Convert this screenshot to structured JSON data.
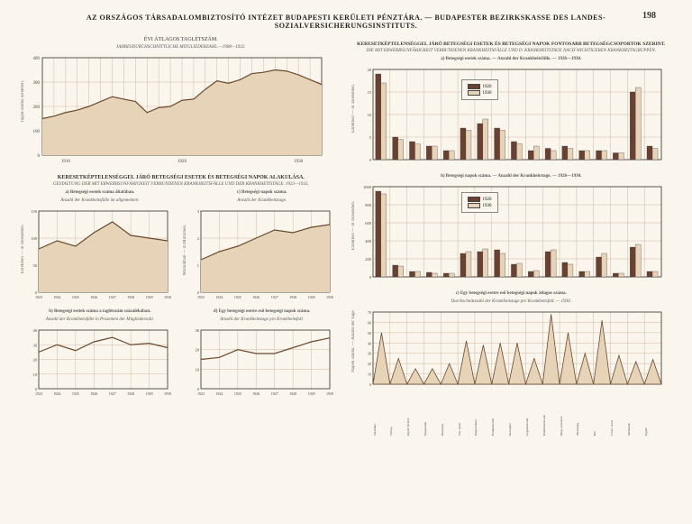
{
  "page_number": "198",
  "main_title": "AZ ORSZÁGOS TÁRSADALOMBIZTOSÍTÓ INTÉZET BUDAPESTI KERÜLETI PÉNZTÁRA. — BUDAPESTER BEZIRKSKASSE DES LANDES-SOZIALVERSICHERUNGSINSTITUTS.",
  "chart_a": {
    "title": "ÉVI ÁTLAGOS TAGLÉTSZÁM.",
    "subtitle": "JAHRESDURCHSCHNITTLICHE MITGLIEDERZAHL.—1908—1932.",
    "type": "area",
    "xlim": [
      1908,
      1932
    ],
    "ylim": [
      0,
      400
    ],
    "ytick_step": 100,
    "x_ticks": [
      1910,
      1920,
      1930
    ],
    "values": [
      150,
      160,
      175,
      185,
      200,
      220,
      240,
      230,
      220,
      175,
      195,
      200,
      225,
      230,
      270,
      305,
      295,
      310,
      335,
      340,
      350,
      345,
      330,
      310,
      290
    ],
    "fill_color": "#e6d3b8",
    "line_color": "#6a4a2d",
    "grid_color": "#c7a88a",
    "bg": "#faf6ed",
    "ylabel": "Tagok száma ezrekben."
  },
  "section_b_title": "KERESETKÉPTELENSÉGGEL JÁRÓ BETEGSÉGI ESETEK ÉS BETEGSÉGI NAPOK ALAKULÁSA.",
  "section_b_subtitle": "GESTALTUNG DER MIT ERWERBSUNFÄHIGKEIT VERBUNDENEN KRANKHEITSFÄLLE UND DER KRANKHEITSTAGE. 1923—1932.",
  "chart_b1": {
    "title": "a) Betegségi esetek száma általában.",
    "subtitle": "Anzahl der Krankheitsfälle im allgemeinen.",
    "ylim": [
      0,
      150
    ],
    "ytick_step": 50,
    "x_ticks": [
      1923,
      1924,
      1925,
      1926,
      1927,
      1928,
      1929,
      1930
    ],
    "values": [
      80,
      95,
      85,
      110,
      130,
      105,
      100,
      95
    ],
    "line_color": "#6a4a2d",
    "fill_color": "#e6d3b8",
    "grid_color": "#c7a88a",
    "ylabel": "Ezrekben — in Tausenden."
  },
  "chart_b2": {
    "title": "c) Betegségi napok száma.",
    "subtitle": "Anzahl der Krankheitstage.",
    "ylim": [
      0,
      3
    ],
    "ytick_step": 1,
    "x_ticks": [
      1923,
      1924,
      1925,
      1926,
      1927,
      1928,
      1929,
      1930
    ],
    "values": [
      1.2,
      1.5,
      1.7,
      2.0,
      2.3,
      2.2,
      2.4,
      2.5
    ],
    "line_color": "#6a4a2d",
    "fill_color": "#e6d3b8",
    "grid_color": "#c7a88a",
    "ylabel": "Milliókban — in Millionen."
  },
  "chart_b3": {
    "title": "b) Betegségi esetek száma a taglétszám százalékában.",
    "subtitle": "Anzahl der Krankheitsfälle in Prozenten der Mitgliederzahl.",
    "ylim": [
      0,
      40
    ],
    "ytick_step": 10,
    "x_ticks": [
      1923,
      1924,
      1925,
      1926,
      1927,
      1928,
      1929,
      1930
    ],
    "values": [
      25,
      30,
      26,
      32,
      35,
      30,
      31,
      28
    ],
    "line_color": "#6a4a2d",
    "grid_color": "#c7a88a",
    "ylabel": "%"
  },
  "chart_b4": {
    "title": "d) Egy betegségi esetre eső betegségi napok száma.",
    "subtitle": "Anzahl der Krankheitstage pro Krankheitsfall.",
    "ylim": [
      0,
      30
    ],
    "ytick_step": 10,
    "x_ticks": [
      1923,
      1924,
      1925,
      1926,
      1927,
      1928,
      1929,
      1930
    ],
    "values": [
      15,
      16,
      20,
      18,
      18,
      21,
      24,
      26
    ],
    "line_color": "#6a4a2d",
    "grid_color": "#c7a88a",
    "ylabel": "Napok száma — Anzahl der Tage."
  },
  "right_title": "KERESETKÉPTELENSÉGGEL JÁRÓ BETEGSÉGI ESETEK ÉS BETEGSÉGI NAPOK FONTOSABB BETEGSÉGCSOPORTOK SZERINT.",
  "right_subtitle": "DIE MIT ERWERBSUNFÄHIGKEIT VERBUNDENEN KRANKHEITSFÄLLE UND D. KRANKHEITSTAGE NACH WICHTIGEREN KRANKHEITSGRUPPEN.",
  "chart_c1": {
    "title": "a) Betegségi esetek száma. — Anzahl der Krankheitsfälle. — 1926—1930.",
    "ylim": [
      0,
      20
    ],
    "ytick_step": 5,
    "legend_years": [
      "1926",
      "1930"
    ],
    "colors": [
      "#6a4130",
      "#e6d3b8"
    ],
    "values_1926": [
      19,
      5,
      4,
      3,
      2,
      7,
      8,
      7,
      4,
      2,
      2.5,
      3,
      2,
      2,
      1.5,
      15,
      3
    ],
    "values_1930": [
      17,
      4.5,
      3.5,
      3,
      2,
      6.5,
      9,
      6.5,
      3.5,
      3,
      2,
      2.5,
      2,
      2,
      1.5,
      16,
      2.5
    ],
    "grid_color": "#c7a88a",
    "ylabel": "Ezrekben — in Tausenden."
  },
  "chart_c2": {
    "title": "b) Betegségi napok száma. — Anzahl der Krankheitstage. — 1926—1930.",
    "ylim": [
      0,
      1000
    ],
    "ytick_step": 200,
    "legend_years": [
      "1926",
      "1930"
    ],
    "colors": [
      "#6a4130",
      "#e6d3b8"
    ],
    "values_1926": [
      950,
      130,
      60,
      50,
      40,
      260,
      280,
      300,
      140,
      60,
      280,
      160,
      60,
      220,
      40,
      330,
      60
    ],
    "values_1930": [
      920,
      120,
      60,
      40,
      40,
      280,
      310,
      260,
      150,
      70,
      300,
      140,
      60,
      260,
      40,
      360,
      60
    ],
    "grid_color": "#c7a88a",
    "ylabel": "Ezrekben — in Tausenden."
  },
  "chart_c3": {
    "title": "c) Egy betegségi esetre eső betegségi napok átlagos száma.",
    "subtitle": "Durchschnittszahl der Krankheitstage pro Krankheitsfall. — 1930.",
    "ylim": [
      0,
      70
    ],
    "ytick_step": 10,
    "values": [
      50,
      25,
      15,
      15,
      20,
      42,
      38,
      40,
      40,
      25,
      68,
      50,
      30,
      62,
      28,
      22,
      24
    ],
    "fill_color": "#e6d3b8",
    "line_color": "#6a4a2d",
    "grid_color": "#c7a88a",
    "ylabel": "Napok száma. — Anzahl der Tage."
  },
  "categories": [
    "Gümőkór",
    "Vérbaj",
    "Egyéb fertőző",
    "Daganatok",
    "Rheumás",
    "Vér, belső",
    "Idegrendszer",
    "Érzékszervek",
    "Keringési",
    "Légzőszervek",
    "Emésztőszervek",
    "Húgy-ivarszerv",
    "Terhesség",
    "Bőr",
    "Csont, izom",
    "Sérülések",
    "Egyéb"
  ]
}
